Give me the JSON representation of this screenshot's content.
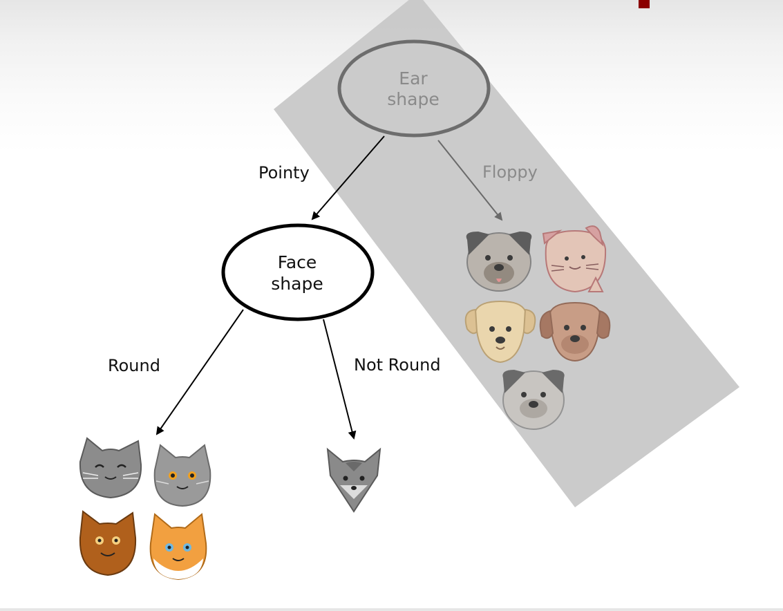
{
  "diagram": {
    "root": {
      "label_line1": "Ear",
      "label_line2": "shape"
    },
    "child": {
      "label_line1": "Face",
      "label_line2": "shape"
    },
    "edges": {
      "pointy": "Pointy",
      "floppy": "Floppy",
      "round": "Round",
      "not_round": "Not Round"
    },
    "leaves": {
      "round_cats": [
        "cat-grey-smiling-icon",
        "cat-grey-orange-eyes-icon",
        "cat-brown-icon",
        "cat-orange-white-icon"
      ],
      "not_round_cats": [
        "cat-grey-pointed-icon"
      ],
      "floppy_dogs": [
        "dog-pug-grey-icon",
        "dog-pink-icon",
        "dog-golden-icon",
        "dog-brown-icon",
        "dog-pug-light-icon"
      ]
    },
    "colors": {
      "highlight_band": "#c8c8c8",
      "node_stroke": "#000000",
      "dim_text": "#8a8a8a",
      "accent": "#8b0000"
    }
  }
}
